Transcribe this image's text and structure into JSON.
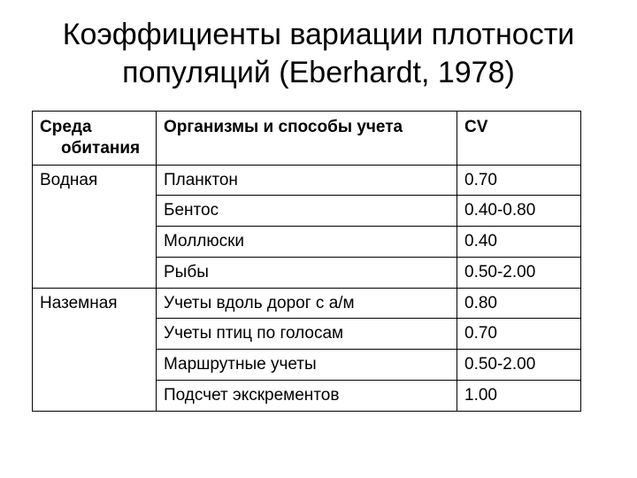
{
  "title": "Коэффициенты вариации плотности популяций (Eberhardt, 1978)",
  "table": {
    "columns": {
      "env_line1": "Среда",
      "env_line2": "обитания",
      "org": "Организмы и способы учета",
      "cv": "CV"
    },
    "groups": [
      {
        "env": "Водная",
        "rows": [
          {
            "org": "Планктон",
            "cv": "0.70"
          },
          {
            "org": "Бентос",
            "cv": "0.40-0.80"
          },
          {
            "org": "Моллюски",
            "cv": "0.40"
          },
          {
            "org": "Рыбы",
            "cv": "0.50-2.00"
          }
        ]
      },
      {
        "env": "Наземная",
        "rows": [
          {
            "org": "Учеты вдоль дорог с а/м",
            "cv": "0.80"
          },
          {
            "org": "Учеты птиц по голосам",
            "cv": "0.70"
          },
          {
            "org": "Маршрутные учеты",
            "cv": "0.50-2.00"
          },
          {
            "org": "Подсчет экскрементов",
            "cv": "1.00"
          }
        ]
      }
    ]
  }
}
